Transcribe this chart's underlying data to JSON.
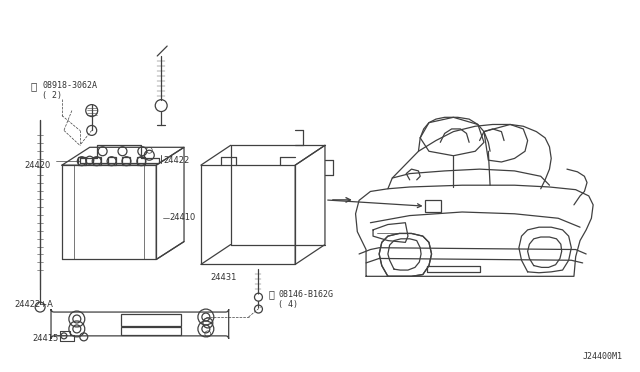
{
  "background_color": "#ffffff",
  "line_color": "#404040",
  "text_color": "#333333",
  "fig_width": 6.4,
  "fig_height": 3.72,
  "dpi": 100,
  "diagram_label": "J24400M1",
  "label_n_part": "08918-3062A",
  "label_n_qty": "( 2)",
  "label_24420": "24420",
  "label_24422": "24422",
  "label_24410": "24410",
  "label_24431": "24431",
  "label_24422a": "24422+A",
  "label_24415": "24415",
  "label_b_part": "08146-B162G",
  "label_b_qty": "( 4)"
}
